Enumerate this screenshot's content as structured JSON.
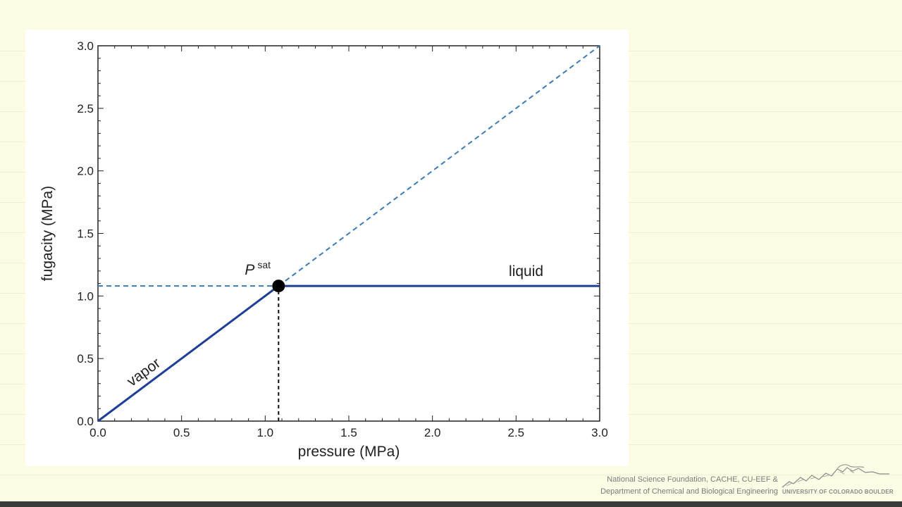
{
  "chart_data": {
    "type": "line",
    "xlabel": "pressure (MPa)",
    "ylabel": "fugacity (MPa)",
    "xlim": [
      0,
      3
    ],
    "ylim": [
      0,
      3
    ],
    "x_ticks": [
      "0.0",
      "0.5",
      "1.0",
      "1.5",
      "2.0",
      "2.5",
      "3.0"
    ],
    "y_ticks": [
      "0.0",
      "0.5",
      "1.0",
      "1.5",
      "2.0",
      "2.5",
      "3.0"
    ],
    "x_tick_values": [
      0,
      0.5,
      1.0,
      1.5,
      2.0,
      2.5,
      3.0
    ],
    "y_tick_values": [
      0,
      0.5,
      1.0,
      1.5,
      2.0,
      2.5,
      3.0
    ],
    "series": [
      {
        "name": "vapor",
        "style": "solid",
        "color": "#1f3e95",
        "x": [
          0,
          1.08
        ],
        "y": [
          0,
          1.08
        ]
      },
      {
        "name": "liquid",
        "style": "solid",
        "color": "#1f3e95",
        "x": [
          1.08,
          3.0
        ],
        "y": [
          1.08,
          1.08
        ]
      },
      {
        "style": "dashed",
        "color": "#3d7ab8",
        "x": [
          1.08,
          3.0
        ],
        "y": [
          1.08,
          3.0
        ]
      },
      {
        "style": "dashed",
        "color": "#3d7ab8",
        "x": [
          0,
          1.08
        ],
        "y": [
          1.08,
          1.08
        ]
      },
      {
        "style": "dashed",
        "color": "#111111",
        "x": [
          1.08,
          1.08
        ],
        "y": [
          0,
          1.08
        ]
      }
    ],
    "points": [
      {
        "x": 1.08,
        "y": 1.08,
        "color": "#000000"
      }
    ],
    "annotations": {
      "psat_main": "P",
      "psat_sup": "sat",
      "vapor": "vapor",
      "liquid": "liquid"
    }
  },
  "footer": {
    "line1": "National Science Foundation, CACHE, CU-EEF &",
    "line2": "Department of Chemical and Biological Engineering",
    "logo_text": "UNIVERSITY OF COLORADO BOULDER",
    "logo_icon": "mountain-logo-icon"
  }
}
